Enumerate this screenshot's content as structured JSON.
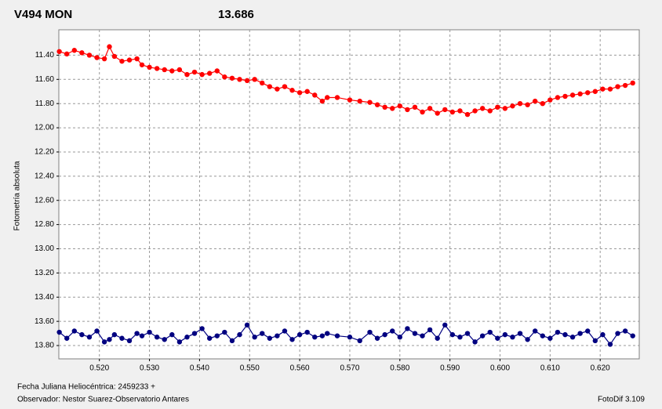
{
  "chart_data": {
    "type": "line",
    "title": "V494 MON",
    "subtitle": "13.686",
    "ylabel": "Fotometría absoluta",
    "xlabel": "Fecha Juliana Heliocéntrica: 2459233 +",
    "observer": "Observador: Nestor Suarez-Observatorio Antares",
    "version": "FotoDif 3.109",
    "title_color": "#ff0000",
    "subtitle_color": "#000080",
    "grid": true,
    "y_inverted": true,
    "markers": true,
    "xlim": [
      0.5119,
      0.6278
    ],
    "ylim": [
      11.19,
      13.91
    ],
    "xticks": [
      {
        "value": 0.52,
        "label": "0.520"
      },
      {
        "value": 0.53,
        "label": "0.530"
      },
      {
        "value": 0.54,
        "label": "0.540"
      },
      {
        "value": 0.55,
        "label": "0.550"
      },
      {
        "value": 0.56,
        "label": "0.560"
      },
      {
        "value": 0.57,
        "label": "0.570"
      },
      {
        "value": 0.58,
        "label": "0.580"
      },
      {
        "value": 0.59,
        "label": "0.590"
      },
      {
        "value": 0.6,
        "label": "0.600"
      },
      {
        "value": 0.61,
        "label": "0.610"
      },
      {
        "value": 0.62,
        "label": "0.620"
      }
    ],
    "yticks": [
      {
        "value": 11.4,
        "label": "11.40"
      },
      {
        "value": 11.6,
        "label": "11.60"
      },
      {
        "value": 11.8,
        "label": "11.80"
      },
      {
        "value": 12.0,
        "label": "12.00"
      },
      {
        "value": 12.2,
        "label": "12.20"
      },
      {
        "value": 12.4,
        "label": "12.40"
      },
      {
        "value": 12.6,
        "label": "12.60"
      },
      {
        "value": 12.8,
        "label": "12.80"
      },
      {
        "value": 13.0,
        "label": "13.00"
      },
      {
        "value": 13.2,
        "label": "13.20"
      },
      {
        "value": 13.4,
        "label": "13.40"
      },
      {
        "value": 13.6,
        "label": "13.60"
      },
      {
        "value": 13.8,
        "label": "13.80"
      }
    ],
    "x": [
      0.512,
      0.5135,
      0.515,
      0.5165,
      0.518,
      0.5195,
      0.521,
      0.522,
      0.523,
      0.5245,
      0.526,
      0.5275,
      0.5285,
      0.53,
      0.5315,
      0.533,
      0.5345,
      0.536,
      0.5375,
      0.539,
      0.5405,
      0.542,
      0.5435,
      0.545,
      0.5465,
      0.548,
      0.5495,
      0.551,
      0.5525,
      0.554,
      0.5555,
      0.557,
      0.5585,
      0.56,
      0.5615,
      0.563,
      0.5645,
      0.5655,
      0.5675,
      0.57,
      0.572,
      0.574,
      0.5755,
      0.577,
      0.5785,
      0.58,
      0.5815,
      0.583,
      0.5845,
      0.586,
      0.5875,
      0.589,
      0.5905,
      0.592,
      0.5935,
      0.595,
      0.5965,
      0.598,
      0.5995,
      0.601,
      0.6025,
      0.604,
      0.6055,
      0.607,
      0.6085,
      0.61,
      0.6115,
      0.613,
      0.6145,
      0.616,
      0.6175,
      0.619,
      0.6205,
      0.622,
      0.6235,
      0.625,
      0.6265
    ],
    "series": [
      {
        "color": "#ff0000",
        "values": [
          11.37,
          11.39,
          11.36,
          11.38,
          11.4,
          11.42,
          11.43,
          11.33,
          11.41,
          11.45,
          11.44,
          11.43,
          11.48,
          11.5,
          11.51,
          11.52,
          11.53,
          11.52,
          11.56,
          11.54,
          11.56,
          11.55,
          11.53,
          11.58,
          11.59,
          11.6,
          11.61,
          11.6,
          11.63,
          11.66,
          11.68,
          11.66,
          11.69,
          11.71,
          11.7,
          11.73,
          11.78,
          11.75,
          11.75,
          11.77,
          11.78,
          11.79,
          11.81,
          11.83,
          11.84,
          11.82,
          11.85,
          11.83,
          11.87,
          11.84,
          11.88,
          11.85,
          11.87,
          11.86,
          11.89,
          11.86,
          11.84,
          11.86,
          11.83,
          11.84,
          11.82,
          11.8,
          11.81,
          11.78,
          11.8,
          11.77,
          11.75,
          11.74,
          11.73,
          11.72,
          11.71,
          11.7,
          11.68,
          11.68,
          11.66,
          11.65,
          11.63
        ]
      },
      {
        "color": "#000080",
        "values": [
          13.69,
          13.74,
          13.68,
          13.71,
          13.73,
          13.68,
          13.77,
          13.75,
          13.71,
          13.74,
          13.76,
          13.7,
          13.72,
          13.69,
          13.73,
          13.75,
          13.71,
          13.77,
          13.73,
          13.7,
          13.66,
          13.74,
          13.72,
          13.69,
          13.76,
          13.71,
          13.63,
          13.73,
          13.7,
          13.74,
          13.72,
          13.68,
          13.75,
          13.71,
          13.69,
          13.73,
          13.72,
          13.7,
          13.72,
          13.73,
          13.76,
          13.69,
          13.74,
          13.71,
          13.68,
          13.73,
          13.66,
          13.7,
          13.72,
          13.67,
          13.74,
          13.63,
          13.71,
          13.73,
          13.7,
          13.77,
          13.72,
          13.69,
          13.74,
          13.71,
          13.73,
          13.7,
          13.75,
          13.68,
          13.72,
          13.74,
          13.69,
          13.71,
          13.73,
          13.7,
          13.68,
          13.76,
          13.71,
          13.79,
          13.7,
          13.68,
          13.72
        ]
      }
    ]
  }
}
